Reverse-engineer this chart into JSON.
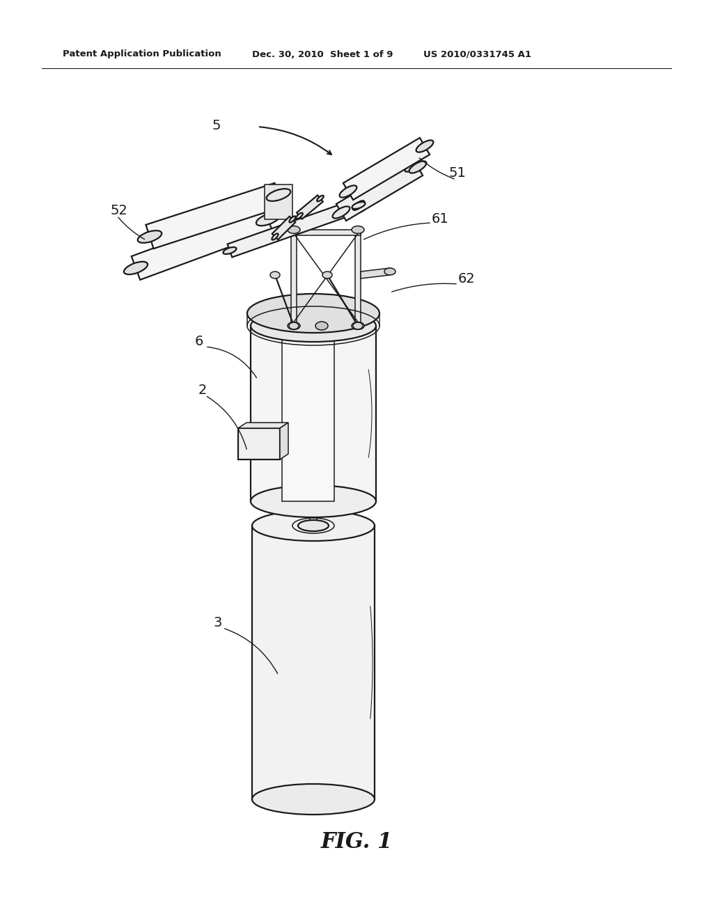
{
  "bg_color": "#ffffff",
  "line_color": "#1a1a1a",
  "header_left": "Patent Application Publication",
  "header_mid": "Dec. 30, 2010  Sheet 1 of 9",
  "header_right": "US 2010/0331745 A1",
  "figure_label": "FIG. 1",
  "lw_main": 1.6,
  "lw_thin": 1.1,
  "lw_light": 0.7
}
